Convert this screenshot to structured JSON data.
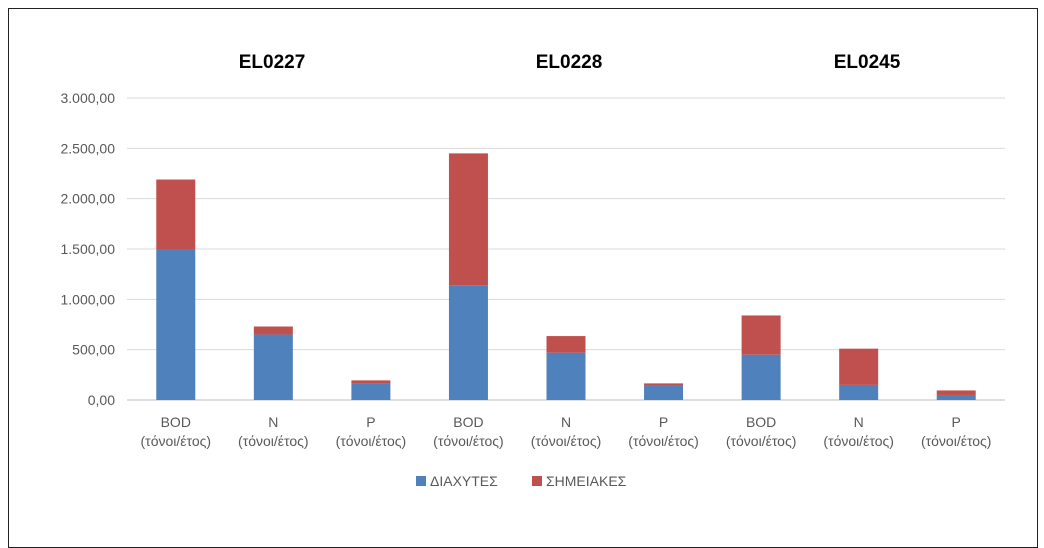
{
  "chart_data": {
    "type": "bar",
    "stacked": true,
    "group_titles": [
      "EL0227",
      "EL0228",
      "EL0245"
    ],
    "categories": [
      [
        "BOD",
        "(τόνοι/έτος)"
      ],
      [
        "N",
        "(τόνοι/έτος)"
      ],
      [
        "P",
        "(τόνοι/έτος)"
      ],
      [
        "BOD",
        "(τόνοι/έτος)"
      ],
      [
        "N",
        "(τόνοι/έτος)"
      ],
      [
        "P",
        "(τόνοι/έτος)"
      ],
      [
        "BOD",
        "(τόνοι/έτος)"
      ],
      [
        "N",
        "(τόνοι/έτος)"
      ],
      [
        "P",
        "(τόνοι/έτος)"
      ]
    ],
    "series": [
      {
        "name": "ΔΙΑΧΥΤΕΣ",
        "color": "#4F81BD",
        "values": [
          1500,
          650,
          165,
          1140,
          470,
          140,
          450,
          150,
          50
        ]
      },
      {
        "name": "ΣΗΜΕΙΑΚΕΣ",
        "color": "#C0504D",
        "values": [
          690,
          80,
          30,
          1310,
          165,
          25,
          390,
          360,
          45
        ]
      }
    ],
    "ylim": [
      0,
      3000
    ],
    "yticks": [
      0,
      500,
      1000,
      1500,
      2000,
      2500,
      3000
    ],
    "ytick_labels": [
      "0,00",
      "500,00",
      "1.000,00",
      "1.500,00",
      "2.000,00",
      "2.500,00",
      "3.000,00"
    ],
    "grid": true,
    "legend_position": "bottom"
  }
}
